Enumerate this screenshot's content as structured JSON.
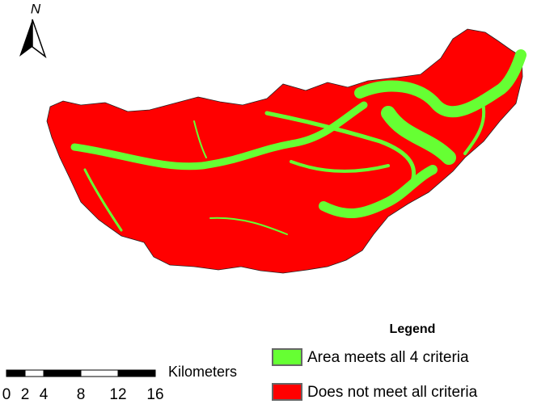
{
  "north_arrow": {
    "label": "N"
  },
  "legend": {
    "title": "Legend",
    "items": [
      {
        "label": "Area meets all 4 criteria",
        "color": "#66ff33"
      },
      {
        "label": "Does not meet all criteria",
        "color": "#ff0000"
      }
    ]
  },
  "scale_bar": {
    "unit": "Kilometers",
    "ticks": [
      0,
      2,
      4,
      8,
      12,
      16
    ]
  }
}
